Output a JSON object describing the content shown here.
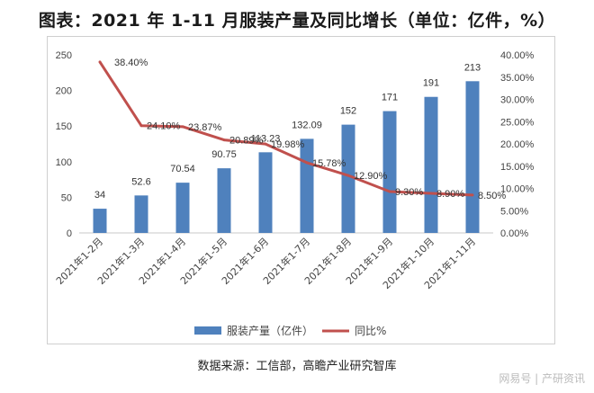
{
  "title": "图表：2021 年 1-11 月服装产量及同比增长（单位：亿件，%）",
  "source": "数据来源：工信部，高瞻产业研究智库",
  "watermark": "网易号 | 产研资讯",
  "colors": {
    "bar": "#4f81bd",
    "line": "#c0504d"
  },
  "chart_data": {
    "type": "bar",
    "categories": [
      "2021年1-2月",
      "2021年1-3月",
      "2021年1-4月",
      "2021年1-5月",
      "2021年1-6月",
      "2021年1-7月",
      "2021年1-8月",
      "2021年1-9月",
      "2021年1-10月",
      "2021年1-11月"
    ],
    "series": [
      {
        "name": "服装产量（亿件）",
        "type": "bar",
        "axis": "left",
        "values": [
          34,
          52.6,
          70.54,
          90.75,
          113.23,
          132.09,
          152,
          171,
          191,
          213
        ],
        "labels": [
          "34",
          "52.6",
          "70.54",
          "90.75",
          "113.23",
          "132.09",
          "152",
          "171",
          "191",
          "213"
        ]
      },
      {
        "name": "同比%",
        "type": "line",
        "axis": "right",
        "values": [
          38.4,
          24.1,
          23.87,
          20.89,
          19.98,
          15.78,
          12.9,
          9.3,
          8.9,
          8.5
        ],
        "labels": [
          "38.40%",
          "24.10%",
          "23.87%",
          "20.89%",
          "19.98%",
          "15.78%",
          "12.90%",
          "9.30%",
          "8.90%",
          "8.50%"
        ]
      }
    ],
    "y_left": {
      "min": 0,
      "max": 250,
      "ticks": [
        "0",
        "50",
        "100",
        "150",
        "200",
        "250"
      ]
    },
    "y_right": {
      "min": 0,
      "max": 40,
      "ticks": [
        "0.00%",
        "5.00%",
        "10.00%",
        "15.00%",
        "20.00%",
        "25.00%",
        "30.00%",
        "35.00%",
        "40.00%"
      ]
    },
    "legend_position": "bottom",
    "grid": false
  }
}
